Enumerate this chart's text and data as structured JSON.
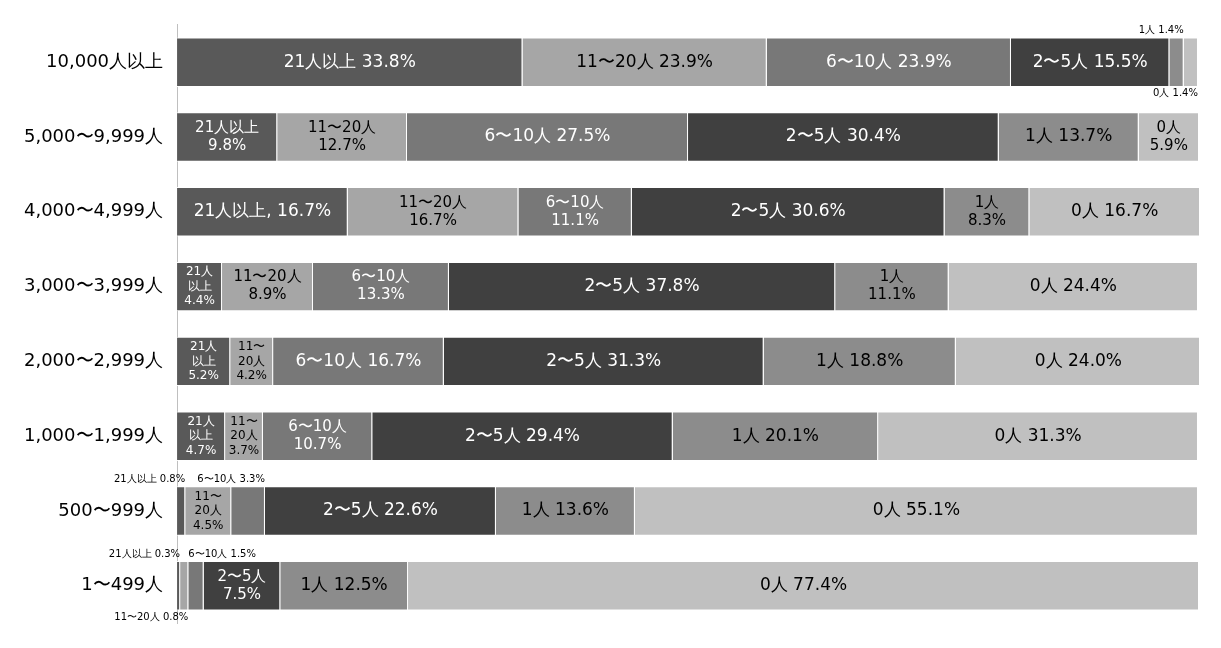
{
  "chart_data": {
    "type": "bar",
    "orientation": "horizontal",
    "stacked": true,
    "grid": false,
    "legend": false,
    "tick_labels": "y",
    "xlim": [
      0,
      100
    ],
    "categories": [
      "10,000人以上",
      "5,000〜9,999人",
      "4,000〜4,999人",
      "3,000〜3,999人",
      "2,000〜2,999人",
      "1,000〜1,999人",
      "500〜999人",
      "1〜499人"
    ],
    "series": [
      {
        "color": "#595959",
        "values": [
          33.8,
          9.8,
          16.7,
          4.4,
          5.2,
          4.7,
          0.8,
          0.3
        ],
        "value_labels": [
          "21人以上 33.8%",
          "21人以上\n9.8%",
          "21人以上, 16.7%",
          "21人以上\n4.4%",
          "21人以上\n5.2%",
          "21人以上\n4.7%",
          "21人以上 0.8%",
          "21人以上 0.3%"
        ]
      },
      {
        "color": "#a6a6a6",
        "values": [
          23.9,
          12.7,
          16.7,
          8.9,
          4.2,
          3.7,
          4.5,
          0.8
        ],
        "value_labels": [
          "11〜20人 23.9%",
          "11〜20人\n12.7%",
          "11〜20人\n16.7%",
          "11〜20人\n8.9%",
          "11〜\n20人\n4.2%",
          "11〜\n20人\n3.7%",
          "11〜\n20人\n4.5%",
          "11〜20人 0.8%"
        ]
      },
      {
        "color": "#787878",
        "values": [
          23.9,
          27.5,
          11.1,
          13.3,
          16.7,
          10.7,
          3.3,
          1.5
        ],
        "value_labels": [
          "6〜10人 23.9%",
          "6〜10人 27.5%",
          "6〜10人\n11.1%",
          "6〜10人\n13.3%",
          "6〜10人 16.7%",
          "6〜10人\n10.7%",
          "6〜10人 3.3%",
          "6〜10人 1.5%"
        ]
      },
      {
        "color": "#404040",
        "values": [
          15.5,
          30.4,
          30.6,
          37.8,
          31.3,
          29.4,
          22.6,
          7.5
        ],
        "value_labels": [
          "2〜5人 15.5%",
          "2〜5人 30.4%",
          "2〜5人 30.6%",
          "2〜5人 37.8%",
          "2〜5人 31.3%",
          "2〜5人 29.4%",
          "2〜5人 22.6%",
          "2〜5人\n7.5%"
        ]
      },
      {
        "color": "#8c8c8c",
        "values": [
          1.4,
          13.7,
          8.3,
          11.1,
          18.8,
          20.1,
          13.6,
          12.5
        ],
        "value_labels": [
          "1人 1.4%",
          "1人 13.7%",
          "1人\n8.3%",
          "1人\n11.1%",
          "1人 18.8%",
          "1人 20.1%",
          "1人 13.6%",
          "1人 12.5%"
        ]
      },
      {
        "color": "#c0c0c0",
        "values": [
          1.4,
          5.9,
          16.7,
          24.4,
          24.0,
          31.3,
          55.1,
          77.4
        ],
        "value_labels": [
          "0人 1.4%",
          "0人\n5.9%",
          "0人 16.7%",
          "0人 24.4%",
          "0人 24.0%",
          "0人 31.3%",
          "0人 55.1%",
          "0人 77.4%"
        ]
      }
    ]
  }
}
